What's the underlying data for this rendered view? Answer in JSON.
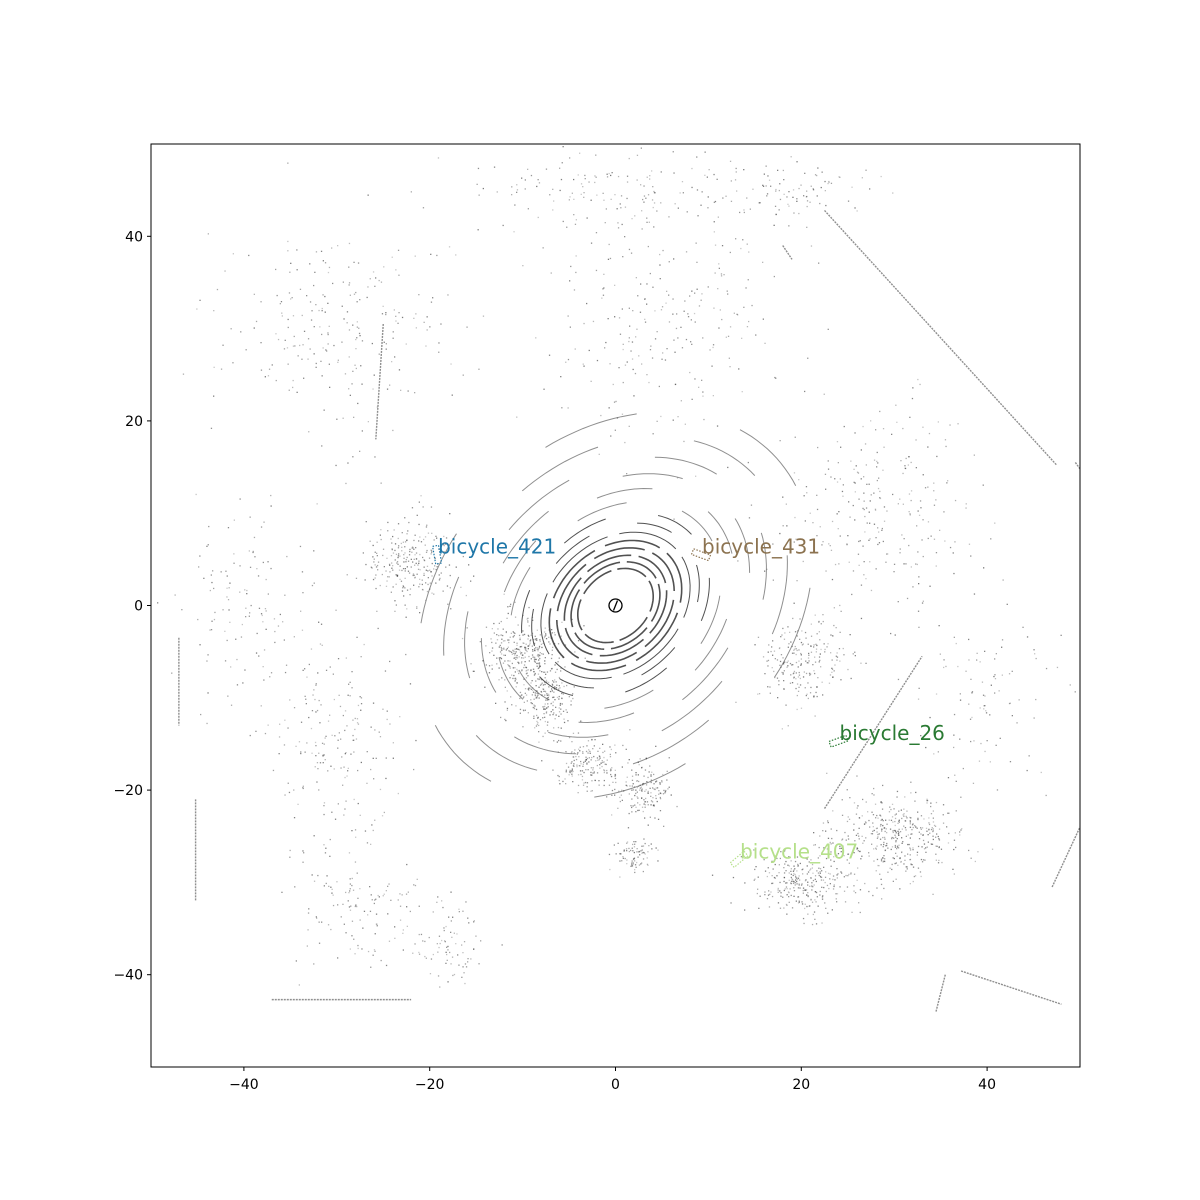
{
  "chart_data": {
    "type": "scatter",
    "title": "",
    "xlabel": "",
    "ylabel": "",
    "xlim": [
      -50,
      50
    ],
    "ylim": [
      -50,
      50
    ],
    "grid": false,
    "x_ticks": [
      -40,
      -20,
      0,
      20,
      40
    ],
    "y_ticks": [
      -40,
      -20,
      0,
      20,
      40
    ],
    "x_tick_labels": [
      "−40",
      "−20",
      "0",
      "20",
      "40"
    ],
    "y_tick_labels": [
      "−40",
      "−20",
      "0",
      "20",
      "40"
    ],
    "point_color": "#333333",
    "ego_marker": {
      "x": 0,
      "y": 0,
      "radius": 0.7
    },
    "objects": [
      {
        "label": "bicycle_421",
        "x": -19.2,
        "y": 5.5,
        "heading_deg": 100,
        "color": "#1f77a8"
      },
      {
        "label": "bicycle_431",
        "x": 9.2,
        "y": 5.5,
        "heading_deg": -20,
        "color": "#8c7350"
      },
      {
        "label": "bicycle_26",
        "x": 24.0,
        "y": -14.7,
        "heading_deg": 20,
        "color": "#2a7a33"
      },
      {
        "label": "bicycle_407",
        "x": 13.3,
        "y": -27.5,
        "heading_deg": 40,
        "color": "#b5e08a"
      }
    ],
    "rings": {
      "center": [
        0,
        0
      ],
      "radii": [
        4.5,
        5.3,
        6.1,
        7.0,
        7.9,
        8.9,
        10.0,
        11.2,
        12.6,
        14.2,
        16.0,
        18.0,
        20.5,
        23.5
      ]
    },
    "line_segments": [
      [
        [
          22.5,
          42.8
        ],
        [
          47.5,
          15.2
        ]
      ],
      [
        [
          49.5,
          15.5
        ],
        [
          50.0,
          14.8
        ]
      ],
      [
        [
          37.2,
          -39.6
        ],
        [
          48.0,
          -43.2
        ]
      ],
      [
        [
          35.5,
          -40.0
        ],
        [
          34.5,
          -44.0
        ]
      ],
      [
        [
          -37.0,
          -42.7
        ],
        [
          -22.0,
          -42.7
        ]
      ],
      [
        [
          -47.0,
          -3.5
        ],
        [
          -47.0,
          -13.0
        ]
      ],
      [
        [
          -45.2,
          -21.0
        ],
        [
          -45.2,
          -32.0
        ]
      ],
      [
        [
          -25.0,
          30.5
        ],
        [
          -25.8,
          18.0
        ]
      ],
      [
        [
          22.5,
          -22.0
        ],
        [
          33.0,
          -5.5
        ]
      ],
      [
        [
          47.0,
          -30.5
        ],
        [
          50.0,
          -24.0
        ]
      ],
      [
        [
          18.0,
          39.0
        ],
        [
          19.0,
          37.5
        ]
      ]
    ],
    "scatter_clusters": [
      {
        "x": -22,
        "y": 5,
        "sx": 4,
        "sy": 4,
        "n": 260
      },
      {
        "x": -10,
        "y": -5,
        "sx": 3.5,
        "sy": 3,
        "n": 320
      },
      {
        "x": -8,
        "y": -10,
        "sx": 3,
        "sy": 3,
        "n": 220
      },
      {
        "x": -3,
        "y": -17,
        "sx": 3,
        "sy": 2.5,
        "n": 180
      },
      {
        "x": 3,
        "y": -20,
        "sx": 2.5,
        "sy": 2.5,
        "n": 160
      },
      {
        "x": 20,
        "y": -6,
        "sx": 4,
        "sy": 4,
        "n": 220
      },
      {
        "x": 30,
        "y": -25,
        "sx": 6,
        "sy": 4,
        "n": 420
      },
      {
        "x": 20,
        "y": -30,
        "sx": 5,
        "sy": 3,
        "n": 300
      },
      {
        "x": 28,
        "y": 10,
        "sx": 8,
        "sy": 10,
        "n": 260
      },
      {
        "x": 5,
        "y": 30,
        "sx": 10,
        "sy": 10,
        "n": 240
      },
      {
        "x": -30,
        "y": 30,
        "sx": 10,
        "sy": 10,
        "n": 240
      },
      {
        "x": -30,
        "y": -15,
        "sx": 6,
        "sy": 10,
        "n": 200
      },
      {
        "x": -40,
        "y": 0,
        "sx": 5,
        "sy": 8,
        "n": 120
      },
      {
        "x": -28,
        "y": -33,
        "sx": 6,
        "sy": 5,
        "n": 120
      },
      {
        "x": 2,
        "y": -27,
        "sx": 2,
        "sy": 1.5,
        "n": 80
      },
      {
        "x": 0,
        "y": 45,
        "sx": 15,
        "sy": 4,
        "n": 160
      },
      {
        "x": 20,
        "y": 45,
        "sx": 6,
        "sy": 3,
        "n": 80
      },
      {
        "x": 40,
        "y": -10,
        "sx": 6,
        "sy": 10,
        "n": 100
      },
      {
        "x": -18,
        "y": -36,
        "sx": 4,
        "sy": 4,
        "n": 80
      }
    ]
  }
}
